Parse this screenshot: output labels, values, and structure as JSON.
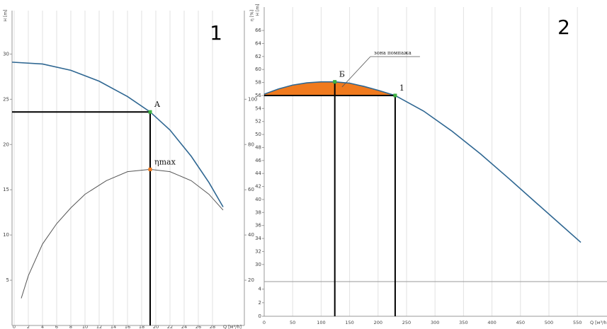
{
  "chart_data": [
    {
      "type": "line",
      "panel_label": "1",
      "xlabel": "Q [м³/h]",
      "ylabel": "H [m]",
      "y2label": "η [%]",
      "xlim": [
        -0.3,
        32.5
      ],
      "ylim": [
        0,
        34.8
      ],
      "y2lim": [
        0,
        139.2
      ],
      "xticks": [
        0,
        2,
        4,
        6,
        8,
        10,
        12,
        14,
        16,
        18,
        20,
        22,
        24,
        26,
        28
      ],
      "yticks": [
        5,
        10,
        15,
        20,
        25,
        30
      ],
      "y2ticks": [
        20,
        40,
        60,
        80,
        100
      ],
      "grid": true,
      "series": [
        {
          "color": "#2f6792",
          "x": [
            -0.3,
            4,
            8,
            12,
            16,
            19.2,
            22,
            25,
            27.5,
            29.5
          ],
          "values": [
            29.1,
            28.9,
            28.2,
            27.0,
            25.3,
            23.6,
            21.6,
            18.7,
            15.8,
            13.1
          ]
        },
        {
          "color": "#555555",
          "axis": "y2",
          "x": [
            1,
            2,
            4,
            6,
            8,
            10,
            13,
            16,
            19.2,
            22,
            25,
            27.5,
            29.5
          ],
          "values": [
            12,
            22,
            36,
            45,
            52,
            58,
            64,
            68,
            69,
            68,
            64,
            58,
            51
          ]
        }
      ],
      "points": [
        {
          "label": "A",
          "x": 19.2,
          "y": 23.6,
          "color": "#3cb043",
          "guides": [
            "left",
            "down"
          ]
        },
        {
          "label": "ηmax",
          "x": 19.2,
          "y": 69,
          "axis": "y2",
          "color": "#f07a1e",
          "guides": []
        }
      ]
    },
    {
      "type": "line",
      "panel_label": "2",
      "xlabel": "Q [м³/h]",
      "ylabel": "H [m]",
      "xlim": [
        0,
        602
      ],
      "ylim": [
        29,
        69.6
      ],
      "lower_ylim": [
        0,
        4.9
      ],
      "xticks": [
        0,
        50,
        100,
        150,
        200,
        250,
        300,
        350,
        400,
        450,
        500,
        550
      ],
      "yticks": [
        30,
        32,
        34,
        36,
        38,
        40,
        42,
        44,
        46,
        48,
        50,
        52,
        54,
        56,
        58,
        60,
        62,
        64,
        66
      ],
      "lower_yticks": [
        0,
        2,
        4
      ],
      "grid": true,
      "series": [
        {
          "color": "#2f6792",
          "x": [
            0,
            25,
            50,
            75,
            100,
            124,
            150,
            175,
            200,
            230,
            280,
            330,
            380,
            430,
            480,
            520,
            556
          ],
          "values": [
            56.2,
            57,
            57.6,
            57.95,
            58.1,
            58.1,
            57.9,
            57.4,
            56.8,
            56,
            53.6,
            50.5,
            47,
            43.2,
            39.3,
            36.2,
            33.4
          ]
        }
      ],
      "surge_zone": {
        "label": "зона помпажа",
        "xlim": [
          0,
          230
        ],
        "base": 56,
        "color": "#f07a1e"
      },
      "points": [
        {
          "label": "Б",
          "x": 124,
          "y": 58.1,
          "color": "#3cb043",
          "guides": [
            "down"
          ]
        },
        {
          "label": "1",
          "x": 230,
          "y": 56,
          "color": "#3cb043",
          "guides": [
            "left",
            "down"
          ]
        }
      ]
    }
  ]
}
